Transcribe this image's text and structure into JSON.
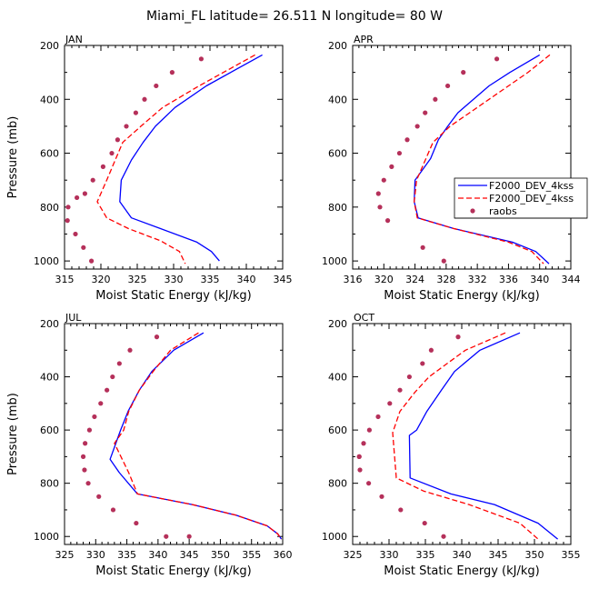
{
  "title": "Miami_FL  latitude= 26.511 N longitude= 80 W",
  "colors": {
    "model1": "#0000ff",
    "model2": "#ff0000",
    "obs": "#b5305a"
  },
  "legend": {
    "items": [
      {
        "label": "F2000_DEV_4kss",
        "style": "solid",
        "series": "model1"
      },
      {
        "label": "F2000_DEV_4kss",
        "style": "dashed",
        "series": "model2"
      },
      {
        "label": "raobs",
        "style": "dots",
        "series": "obs"
      }
    ]
  },
  "chart_data": [
    {
      "type": "line",
      "title": "JAN",
      "xlabel": "Moist Static Energy (kJ/kg)",
      "ylabel": "Pressure (mb)",
      "xlim": [
        315,
        345
      ],
      "xticks": [
        315,
        320,
        325,
        330,
        335,
        340,
        345
      ],
      "ylim": [
        1030,
        200
      ],
      "yticks": [
        200,
        400,
        600,
        800,
        1000
      ],
      "series": [
        {
          "name": "F2000_DEV_4kss",
          "kind": "solid",
          "color_key": "model1",
          "x": [
            342.2,
            334.5,
            330.2,
            327.5,
            325.8,
            324.2,
            322.8,
            322.6,
            324.2,
            328.2,
            333.2,
            335.2,
            336.3
          ],
          "y": [
            235,
            350,
            430,
            500,
            560,
            625,
            700,
            780,
            840,
            880,
            930,
            965,
            1000
          ]
        },
        {
          "name": "F2000_DEV_4kss",
          "kind": "dashed",
          "color_key": "model2",
          "x": [
            341.2,
            333.5,
            328.5,
            325.5,
            323.0,
            320.8,
            319.5,
            320.8,
            323.8,
            328.2,
            330.8,
            331.6
          ],
          "y": [
            235,
            350,
            430,
            500,
            560,
            700,
            780,
            840,
            880,
            925,
            965,
            1010
          ]
        },
        {
          "name": "raobs",
          "kind": "dots",
          "color_key": "obs",
          "x": [
            333.8,
            329.8,
            327.6,
            326.0,
            324.8,
            323.5,
            322.3,
            321.5,
            320.3,
            318.9,
            317.8,
            316.7,
            315.5,
            315.4,
            316.5,
            317.6,
            318.7
          ],
          "y": [
            250,
            300,
            350,
            400,
            450,
            500,
            550,
            600,
            650,
            700,
            750,
            765,
            800,
            850,
            900,
            950,
            1000
          ]
        }
      ]
    },
    {
      "type": "line",
      "title": "APR",
      "xlabel": "Moist Static Energy (kJ/kg)",
      "ylabel": "",
      "xlim": [
        316,
        344
      ],
      "xticks": [
        316,
        320,
        324,
        328,
        332,
        336,
        340,
        344
      ],
      "ylim": [
        1030,
        200
      ],
      "yticks": [
        200,
        400,
        600,
        800,
        1000
      ],
      "series": [
        {
          "name": "F2000_DEV_4kss",
          "kind": "solid",
          "color_key": "model1",
          "x": [
            340.0,
            336.2,
            333.5,
            331.5,
            329.5,
            328.2,
            327.0,
            326.0,
            324.0,
            323.9,
            324.4,
            329.0,
            336.5,
            339.5,
            341.2
          ],
          "y": [
            235,
            300,
            350,
            400,
            450,
            500,
            550,
            620,
            700,
            780,
            840,
            880,
            930,
            965,
            1010
          ]
        },
        {
          "name": "F2000_DEV_4kss",
          "kind": "dashed",
          "color_key": "model2",
          "x": [
            341.3,
            338.5,
            336.0,
            333.5,
            331.0,
            328.5,
            326.3,
            324.2,
            323.9,
            324.3,
            329.0,
            336.0,
            339.0,
            340.5
          ],
          "y": [
            235,
            300,
            350,
            400,
            450,
            500,
            560,
            700,
            780,
            840,
            880,
            930,
            965,
            1010
          ]
        },
        {
          "name": "raobs",
          "kind": "dots",
          "color_key": "obs",
          "x": [
            334.5,
            330.2,
            328.2,
            326.6,
            325.3,
            324.3,
            323.0,
            322.0,
            321.0,
            320.0,
            319.3,
            319.5,
            320.5,
            325.0,
            327.7
          ],
          "y": [
            250,
            300,
            350,
            400,
            450,
            500,
            550,
            600,
            650,
            700,
            750,
            800,
            850,
            950,
            1000
          ]
        }
      ]
    },
    {
      "type": "line",
      "title": "JUL",
      "xlabel": "Moist Static Energy (kJ/kg)",
      "ylabel": "Pressure (mb)",
      "xlim": [
        325,
        360
      ],
      "xticks": [
        325,
        330,
        335,
        340,
        345,
        350,
        355,
        360
      ],
      "ylim": [
        1030,
        200
      ],
      "yticks": [
        200,
        400,
        600,
        800,
        1000
      ],
      "series": [
        {
          "name": "F2000_DEV_4kss",
          "kind": "solid",
          "color_key": "model1",
          "x": [
            347.3,
            342.5,
            339.0,
            337.0,
            335.2,
            334.0,
            332.3,
            333.8,
            336.7,
            345.5,
            352.5,
            357.5,
            359.2,
            359.8
          ],
          "y": [
            235,
            300,
            380,
            450,
            530,
            600,
            710,
            760,
            840,
            880,
            920,
            960,
            990,
            1010
          ]
        },
        {
          "name": "F2000_DEV_4kss",
          "kind": "dashed",
          "color_key": "model2",
          "x": [
            346.5,
            342.0,
            339.2,
            337.0,
            335.3,
            334.5,
            333.0,
            335.3,
            336.7,
            345.5,
            352.5,
            357.5,
            359.2,
            359.8
          ],
          "y": [
            235,
            300,
            380,
            450,
            530,
            600,
            650,
            760,
            840,
            880,
            920,
            960,
            990,
            1010
          ]
        },
        {
          "name": "raobs",
          "kind": "dots",
          "color_key": "obs",
          "x": [
            339.8,
            335.5,
            333.8,
            332.7,
            331.8,
            330.8,
            329.8,
            329.0,
            328.3,
            328.0,
            328.2,
            328.8,
            330.5,
            332.8,
            336.5,
            341.3,
            345.0
          ],
          "y": [
            250,
            300,
            350,
            400,
            450,
            500,
            550,
            600,
            650,
            700,
            750,
            800,
            850,
            900,
            950,
            1000,
            1000
          ]
        }
      ]
    },
    {
      "type": "line",
      "title": "OCT",
      "xlabel": "Moist Static Energy (kJ/kg)",
      "ylabel": "",
      "xlim": [
        325,
        355
      ],
      "xticks": [
        325,
        330,
        335,
        340,
        345,
        350,
        355
      ],
      "ylim": [
        1030,
        200
      ],
      "yticks": [
        200,
        400,
        600,
        800,
        1000
      ],
      "series": [
        {
          "name": "F2000_DEV_4kss",
          "kind": "solid",
          "color_key": "model1",
          "x": [
            348.0,
            342.5,
            339.0,
            337.2,
            335.2,
            333.8,
            332.8,
            332.9,
            338.5,
            344.5,
            350.5,
            353.2
          ],
          "y": [
            235,
            300,
            380,
            450,
            530,
            600,
            620,
            780,
            840,
            880,
            950,
            1010
          ]
        },
        {
          "name": "F2000_DEV_4kss",
          "kind": "dashed",
          "color_key": "model2",
          "x": [
            346.0,
            340.5,
            338.0,
            335.5,
            333.5,
            331.5,
            330.5,
            331.0,
            334.8,
            341.0,
            348.0,
            350.5
          ],
          "y": [
            235,
            300,
            350,
            400,
            460,
            530,
            610,
            780,
            830,
            880,
            950,
            1010
          ]
        },
        {
          "name": "raobs",
          "kind": "dots",
          "color_key": "obs",
          "x": [
            339.5,
            335.8,
            334.6,
            332.8,
            331.5,
            330.1,
            328.5,
            327.3,
            326.5,
            325.9,
            325.9,
            326.0,
            327.2,
            329.0,
            331.6,
            334.9,
            337.5
          ],
          "y": [
            250,
            300,
            350,
            400,
            450,
            500,
            550,
            600,
            650,
            700,
            700,
            750,
            800,
            850,
            900,
            950,
            1000
          ]
        }
      ]
    }
  ]
}
